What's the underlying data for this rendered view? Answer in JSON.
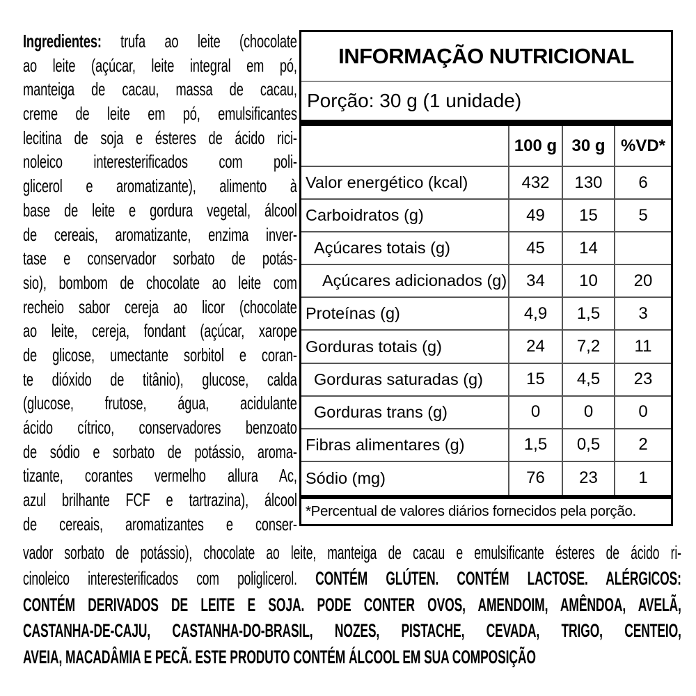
{
  "colors": {
    "background": "#ffffff",
    "text": "#000000",
    "grid_line": "#555555",
    "title_rule": "#8a8a8a"
  },
  "ingredients_column": {
    "lines": [
      [
        {
          "t": "Ingredientes:",
          "b": true
        },
        {
          "t": " trufa ao leite (chocolate",
          "b": false
        }
      ],
      [
        {
          "t": "ao leite (açúcar, leite integral em pó,",
          "b": false
        }
      ],
      [
        {
          "t": "manteiga de cacau, massa de cacau,",
          "b": false
        }
      ],
      [
        {
          "t": "creme de leite em pó, emulsificantes",
          "b": false
        }
      ],
      [
        {
          "t": "lecitina de soja e ésteres de ácido rici-",
          "b": false
        }
      ],
      [
        {
          "t": "noleico interesterificados com poli-",
          "b": false
        }
      ],
      [
        {
          "t": "glicerol e aromatizante), alimento à",
          "b": false
        }
      ],
      [
        {
          "t": "base de leite e gordura vegetal, álcool",
          "b": false
        }
      ],
      [
        {
          "t": "de cereais, aromatizante, enzima inver-",
          "b": false
        }
      ],
      [
        {
          "t": "tase e conservador sorbato de potás-",
          "b": false
        }
      ],
      [
        {
          "t": "sio), bombom de chocolate ao leite com",
          "b": false
        }
      ],
      [
        {
          "t": "recheio sabor cereja ao licor (chocolate",
          "b": false
        }
      ],
      [
        {
          "t": "ao leite, cereja, fondant (açúcar, xarope",
          "b": false
        }
      ],
      [
        {
          "t": "de glicose, umectante sorbitol e coran-",
          "b": false
        }
      ],
      [
        {
          "t": "te dióxido de titânio), glucose, calda",
          "b": false
        }
      ],
      [
        {
          "t": "(glucose, frutose, água, acidulante",
          "b": false
        }
      ],
      [
        {
          "t": "ácido cítrico, conservadores benzoato",
          "b": false
        }
      ],
      [
        {
          "t": "de sódio e sorbato de potássio, aroma-",
          "b": false
        }
      ],
      [
        {
          "t": "tizante, corantes vermelho allura Ac,",
          "b": false
        }
      ],
      [
        {
          "t": "azul brilhante FCF e tartrazina), álcool",
          "b": false
        }
      ],
      [
        {
          "t": "de cereais, aromatizantes e conser-",
          "b": false
        }
      ]
    ]
  },
  "bottom_text": {
    "lines": [
      [
        {
          "t": "vador sorbato de potássio), chocolate ao leite, manteiga de cacau e emulsificante ésteres de ácido ri-",
          "b": false
        }
      ],
      [
        {
          "t": "cinoleico interesterificados com poliglicerol. ",
          "b": false
        },
        {
          "t": "CONTÉM GLÚTEN. CONTÉM LACTOSE. ALÉRGICOS:",
          "b": true
        }
      ],
      [
        {
          "t": "CONTÉM DERIVADOS DE LEITE E SOJA. PODE CONTER OVOS, AMENDOIM, AMÊNDOA, AVELÃ,",
          "b": true
        }
      ],
      [
        {
          "t": "CASTANHA-DE-CAJU, CASTANHA-DO-BRASIL, NOZES, PISTACHE, CEVADA, TRIGO, CENTEIO,",
          "b": true
        }
      ],
      [
        {
          "t": "AVEIA, MACADÂMIA E PECÃ. ESTE PRODUTO CONTÉM ÁLCOOL EM SUA COMPOSIÇÃO",
          "b": true
        }
      ]
    ]
  },
  "nutrition_table": {
    "title": "INFORMAÇÃO NUTRICIONAL",
    "portion": "Porção: 30 g (1 unidade)",
    "column_headers": [
      "100 g",
      "30 g",
      "%VD*"
    ],
    "rows": [
      {
        "label": "Valor energético (kcal)",
        "indent": 0,
        "per_100g": "432",
        "per_30g": "130",
        "pct_vd": "6"
      },
      {
        "label": "Carboidratos (g)",
        "indent": 0,
        "per_100g": "49",
        "per_30g": "15",
        "pct_vd": "5"
      },
      {
        "label": "Açúcares totais (g)",
        "indent": 1,
        "per_100g": "45",
        "per_30g": "14",
        "pct_vd": ""
      },
      {
        "label": "Açúcares adicionados (g)",
        "indent": 2,
        "per_100g": "34",
        "per_30g": "10",
        "pct_vd": "20"
      },
      {
        "label": "Proteínas (g)",
        "indent": 0,
        "per_100g": "4,9",
        "per_30g": "1,5",
        "pct_vd": "3"
      },
      {
        "label": "Gorduras totais (g)",
        "indent": 0,
        "per_100g": "24",
        "per_30g": "7,2",
        "pct_vd": "11"
      },
      {
        "label": "Gorduras saturadas (g)",
        "indent": 1,
        "per_100g": "15",
        "per_30g": "4,5",
        "pct_vd": "23"
      },
      {
        "label": "Gorduras trans (g)",
        "indent": 1,
        "per_100g": "0",
        "per_30g": "0",
        "pct_vd": "0"
      },
      {
        "label": "Fibras alimentares (g)",
        "indent": 0,
        "per_100g": "1,5",
        "per_30g": "0,5",
        "pct_vd": "2"
      },
      {
        "label": "Sódio (mg)",
        "indent": 0,
        "per_100g": "76",
        "per_30g": "23",
        "pct_vd": "1"
      }
    ],
    "footnote": "*Percentual de valores diários fornecidos pela porção."
  }
}
